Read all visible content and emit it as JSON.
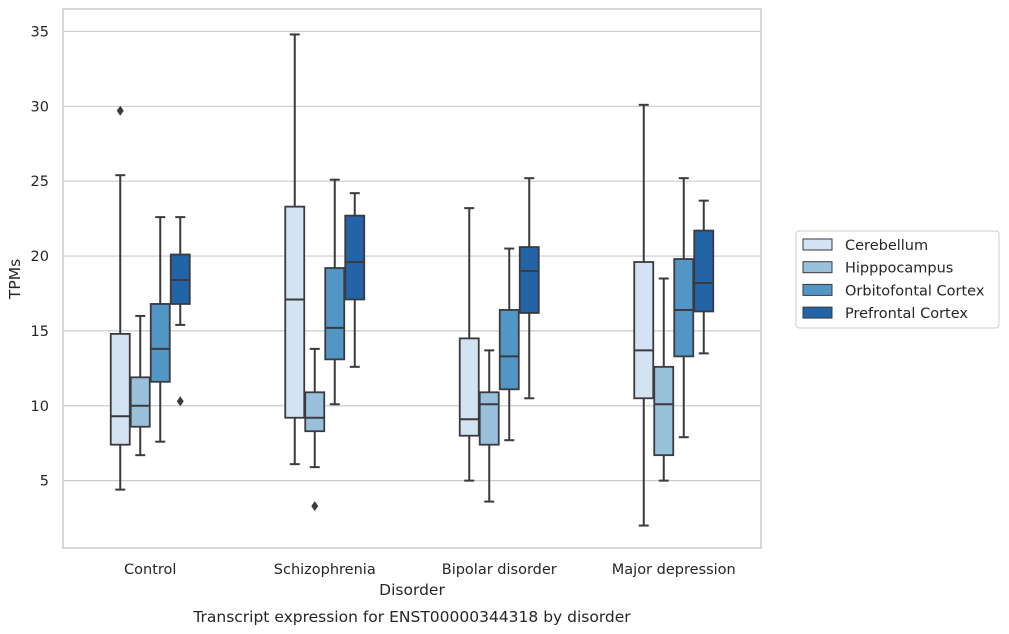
{
  "caption": "Transcript expression for ENST00000344318 by disorder",
  "chart_data": {
    "type": "boxplot",
    "title": "",
    "xlabel": "Disorder",
    "ylabel": "TPMs",
    "ylim": [
      0.5,
      36.5
    ],
    "yticks": [
      5,
      10,
      15,
      20,
      25,
      30,
      35
    ],
    "grid": "horizontal",
    "legend_position": "right",
    "categories": [
      "Control",
      "Schizophrenia",
      "Bipolar disorder",
      "Major depression"
    ],
    "series": [
      {
        "name": "Cerebellum",
        "color": "#d3e3f2",
        "boxes": [
          {
            "whislo": 4.4,
            "q1": 7.4,
            "med": 9.3,
            "q3": 14.8,
            "whishi": 25.4,
            "fliers": [
              29.7
            ]
          },
          {
            "whislo": 6.1,
            "q1": 9.2,
            "med": 17.1,
            "q3": 23.3,
            "whishi": 34.8,
            "fliers": []
          },
          {
            "whislo": 5.0,
            "q1": 8.0,
            "med": 9.1,
            "q3": 14.5,
            "whishi": 23.2,
            "fliers": []
          },
          {
            "whislo": 2.0,
            "q1": 10.5,
            "med": 13.7,
            "q3": 19.6,
            "whishi": 30.1,
            "fliers": []
          }
        ]
      },
      {
        "name": "Hipppocampus",
        "color": "#9ac1dc",
        "boxes": [
          {
            "whislo": 6.7,
            "q1": 8.6,
            "med": 10.0,
            "q3": 11.9,
            "whishi": 16.0,
            "fliers": []
          },
          {
            "whislo": 5.9,
            "q1": 8.3,
            "med": 9.2,
            "q3": 10.9,
            "whishi": 13.8,
            "fliers": [
              3.3
            ]
          },
          {
            "whislo": 3.6,
            "q1": 7.4,
            "med": 10.1,
            "q3": 10.9,
            "whishi": 13.7,
            "fliers": []
          },
          {
            "whislo": 5.0,
            "q1": 6.7,
            "med": 10.1,
            "q3": 12.6,
            "whishi": 18.5,
            "fliers": []
          }
        ]
      },
      {
        "name": "Orbitofontal Cortex",
        "color": "#5296c6",
        "boxes": [
          {
            "whislo": 7.6,
            "q1": 11.6,
            "med": 13.8,
            "q3": 16.8,
            "whishi": 22.6,
            "fliers": []
          },
          {
            "whislo": 10.1,
            "q1": 13.1,
            "med": 15.2,
            "q3": 19.2,
            "whishi": 25.1,
            "fliers": []
          },
          {
            "whislo": 7.7,
            "q1": 11.1,
            "med": 13.3,
            "q3": 16.4,
            "whishi": 20.5,
            "fliers": []
          },
          {
            "whislo": 7.9,
            "q1": 13.3,
            "med": 16.4,
            "q3": 19.8,
            "whishi": 25.2,
            "fliers": []
          }
        ]
      },
      {
        "name": "Prefrontal Cortex",
        "color": "#2264a6",
        "boxes": [
          {
            "whislo": 15.4,
            "q1": 16.8,
            "med": 18.4,
            "q3": 20.1,
            "whishi": 22.6,
            "fliers": [
              10.3
            ]
          },
          {
            "whislo": 12.6,
            "q1": 17.1,
            "med": 19.6,
            "q3": 22.7,
            "whishi": 24.2,
            "fliers": []
          },
          {
            "whislo": 10.5,
            "q1": 16.2,
            "med": 19.0,
            "q3": 20.6,
            "whishi": 25.2,
            "fliers": []
          },
          {
            "whislo": 13.5,
            "q1": 16.3,
            "med": 18.2,
            "q3": 21.7,
            "whishi": 23.7,
            "fliers": []
          }
        ]
      }
    ]
  }
}
